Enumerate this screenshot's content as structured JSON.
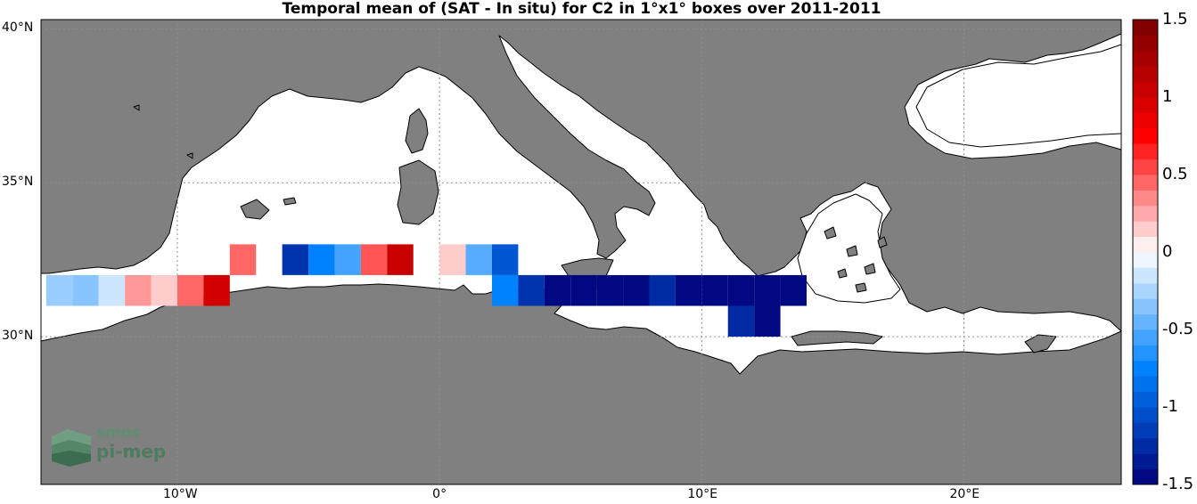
{
  "title": "Temporal mean of (SAT - In situ) for C2 in 1°x1° boxes over 2011-2011",
  "lat_labels": [
    {
      "lat": 40,
      "text": "40°N"
    },
    {
      "lat": 35,
      "text": "35°N"
    },
    {
      "lat": 30,
      "text": "30°N"
    }
  ],
  "lon_labels": [
    {
      "lon": -10,
      "text": "10°W"
    },
    {
      "lon": 0,
      "text": "0°"
    },
    {
      "lon": 10,
      "text": "10°E"
    },
    {
      "lon": 20,
      "text": "20°E"
    }
  ],
  "colorbar": {
    "min": -1.5,
    "max": 1.5,
    "levels": 30,
    "ticks": [
      {
        "value": 1.5,
        "text": "1.5"
      },
      {
        "value": 1,
        "text": "1"
      },
      {
        "value": 0.5,
        "text": "0.5"
      },
      {
        "value": 0,
        "text": "0"
      },
      {
        "value": -0.5,
        "text": "-0.5"
      },
      {
        "value": -1,
        "text": "-1"
      },
      {
        "value": -1.5,
        "text": "-1.5"
      }
    ]
  },
  "logo": {
    "line1": "smos",
    "line2": "pi-mep"
  },
  "colors": {
    "land": "#808080",
    "sea": "#ffffff",
    "grid": "#8c8c8c"
  },
  "chart_data": {
    "type": "heatmap",
    "title": "Temporal mean of (SAT - In situ) for C2 in 1°x1° boxes over 2011-2011",
    "lon_range": [
      -15.2,
      26
    ],
    "lat_range": [
      25.2,
      40.3
    ],
    "cells": [
      {
        "lon": -15,
        "lat": 31,
        "value": -0.3
      },
      {
        "lon": -14,
        "lat": 31,
        "value": -0.35
      },
      {
        "lon": -13,
        "lat": 31,
        "value": -0.15
      },
      {
        "lon": -12,
        "lat": 31,
        "value": 0.3
      },
      {
        "lon": -11,
        "lat": 31,
        "value": 0.15
      },
      {
        "lon": -10,
        "lat": 31,
        "value": 0.45
      },
      {
        "lon": -9,
        "lat": 31,
        "value": 1.0
      },
      {
        "lon": -8,
        "lat": 32,
        "value": 0.45
      },
      {
        "lon": -6,
        "lat": 32,
        "value": -1.2
      },
      {
        "lon": -5,
        "lat": 32,
        "value": -0.75
      },
      {
        "lon": -4,
        "lat": 32,
        "value": -0.55
      },
      {
        "lon": -3,
        "lat": 32,
        "value": 0.5
      },
      {
        "lon": -2,
        "lat": 32,
        "value": 1.05
      },
      {
        "lon": 0,
        "lat": 32,
        "value": 0.15
      },
      {
        "lon": 1,
        "lat": 32,
        "value": -0.5
      },
      {
        "lon": 2,
        "lat": 32,
        "value": -1.0
      },
      {
        "lon": 2,
        "lat": 31,
        "value": -0.75
      },
      {
        "lon": 3,
        "lat": 31,
        "value": -1.2
      },
      {
        "lon": 4,
        "lat": 31,
        "value": -1.45
      },
      {
        "lon": 5,
        "lat": 31,
        "value": -1.45
      },
      {
        "lon": 6,
        "lat": 31,
        "value": -1.45
      },
      {
        "lon": 7,
        "lat": 31,
        "value": -1.45
      },
      {
        "lon": 8,
        "lat": 31,
        "value": -1.25
      },
      {
        "lon": 9,
        "lat": 31,
        "value": -1.45
      },
      {
        "lon": 10,
        "lat": 31,
        "value": -1.45
      },
      {
        "lon": 11,
        "lat": 31,
        "value": -1.45
      },
      {
        "lon": 12,
        "lat": 31,
        "value": -1.45
      },
      {
        "lon": 13,
        "lat": 31,
        "value": -1.45
      },
      {
        "lon": 11,
        "lat": 30,
        "value": -1.25
      },
      {
        "lon": 12,
        "lat": 30,
        "value": -1.45
      }
    ]
  }
}
